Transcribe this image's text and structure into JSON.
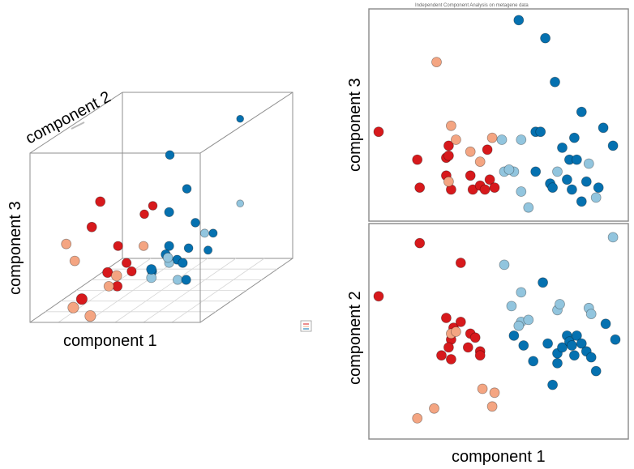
{
  "colors": {
    "dark_red": "#d7191c",
    "light_red": "#f4a582",
    "light_blue": "#92c5de",
    "dark_blue": "#0571b0"
  },
  "figure_3d": {
    "xlabel": "component 1",
    "ylabel": "component 2",
    "zlabel": "component 3",
    "legend_icon": "legend-icon"
  },
  "panel_top": {
    "title": "Independent Component Analysis on metagene data",
    "ylabel": "component 3"
  },
  "panel_bottom": {
    "ylabel": "component 2",
    "xlabel": "component 1"
  },
  "chart_data": [
    {
      "type": "scatter",
      "title": "",
      "xlabel": "component 1",
      "ylabel": "component 3",
      "series": [
        {
          "name": "dark red",
          "color": "#d7191c",
          "points": [
            [
              0.0,
              0.42
            ],
            [
              0.16,
              0.28
            ],
            [
              0.17,
              0.14
            ],
            [
              0.28,
              0.29
            ],
            [
              0.28,
              0.2
            ],
            [
              0.29,
              0.3
            ],
            [
              0.29,
              0.35
            ],
            [
              0.3,
              0.13
            ],
            [
              0.38,
              0.2
            ],
            [
              0.39,
              0.13
            ],
            [
              0.42,
              0.15
            ],
            [
              0.44,
              0.13
            ],
            [
              0.45,
              0.33
            ],
            [
              0.46,
              0.18
            ],
            [
              0.48,
              0.14
            ]
          ]
        },
        {
          "name": "light red",
          "color": "#f4a582",
          "points": [
            [
              0.24,
              0.77
            ],
            [
              0.3,
              0.45
            ],
            [
              0.32,
              0.38
            ],
            [
              0.29,
              0.17
            ],
            [
              0.42,
              0.27
            ],
            [
              0.47,
              0.39
            ],
            [
              0.38,
              0.32
            ]
          ]
        },
        {
          "name": "light blue",
          "color": "#92c5de",
          "points": [
            [
              0.51,
              0.38
            ],
            [
              0.52,
              0.22
            ],
            [
              0.56,
              0.22
            ],
            [
              0.54,
              0.23
            ],
            [
              0.59,
              0.38
            ],
            [
              0.59,
              0.12
            ],
            [
              0.62,
              0.04
            ],
            [
              0.74,
              0.22
            ],
            [
              0.87,
              0.26
            ],
            [
              0.9,
              0.09
            ]
          ]
        },
        {
          "name": "dark blue",
          "color": "#0571b0",
          "points": [
            [
              0.58,
              0.98
            ],
            [
              0.69,
              0.89
            ],
            [
              0.73,
              0.67
            ],
            [
              0.84,
              0.52
            ],
            [
              0.81,
              0.39
            ],
            [
              0.79,
              0.28
            ],
            [
              0.76,
              0.34
            ],
            [
              0.65,
              0.42
            ],
            [
              0.65,
              0.22
            ],
            [
              0.71,
              0.16
            ],
            [
              0.72,
              0.14
            ],
            [
              0.78,
              0.18
            ],
            [
              0.8,
              0.13
            ],
            [
              0.82,
              0.28
            ],
            [
              0.86,
              0.17
            ],
            [
              0.91,
              0.14
            ],
            [
              0.97,
              0.35
            ],
            [
              0.93,
              0.44
            ],
            [
              0.84,
              0.07
            ],
            [
              0.67,
              0.42
            ]
          ]
        }
      ]
    },
    {
      "type": "scatter",
      "title": "",
      "xlabel": "component 1",
      "ylabel": "component 2",
      "series": [
        {
          "name": "dark red",
          "color": "#d7191c",
          "points": [
            [
              0.0,
              0.68
            ],
            [
              0.17,
              0.95
            ],
            [
              0.34,
              0.85
            ],
            [
              0.28,
              0.57
            ],
            [
              0.3,
              0.46
            ],
            [
              0.31,
              0.52
            ],
            [
              0.34,
              0.55
            ],
            [
              0.38,
              0.49
            ],
            [
              0.4,
              0.47
            ],
            [
              0.37,
              0.42
            ],
            [
              0.29,
              0.42
            ],
            [
              0.26,
              0.38
            ],
            [
              0.3,
              0.36
            ],
            [
              0.42,
              0.4
            ],
            [
              0.42,
              0.38
            ]
          ]
        },
        {
          "name": "light red",
          "color": "#f4a582",
          "points": [
            [
              0.16,
              0.06
            ],
            [
              0.23,
              0.11
            ],
            [
              0.3,
              0.49
            ],
            [
              0.32,
              0.5
            ],
            [
              0.43,
              0.21
            ],
            [
              0.48,
              0.19
            ],
            [
              0.47,
              0.12
            ]
          ]
        },
        {
          "name": "light blue",
          "color": "#92c5de",
          "points": [
            [
              0.52,
              0.84
            ],
            [
              0.59,
              0.7
            ],
            [
              0.55,
              0.63
            ],
            [
              0.59,
              0.55
            ],
            [
              0.62,
              0.56
            ],
            [
              0.74,
              0.61
            ],
            [
              0.75,
              0.64
            ],
            [
              0.87,
              0.62
            ],
            [
              0.88,
              0.59
            ],
            [
              0.97,
              0.98
            ],
            [
              0.58,
              0.53
            ]
          ]
        },
        {
          "name": "dark blue",
          "color": "#0571b0",
          "points": [
            [
              0.56,
              0.48
            ],
            [
              0.6,
              0.43
            ],
            [
              0.68,
              0.75
            ],
            [
              0.64,
              0.35
            ],
            [
              0.7,
              0.44
            ],
            [
              0.74,
              0.39
            ],
            [
              0.76,
              0.42
            ],
            [
              0.78,
              0.48
            ],
            [
              0.79,
              0.45
            ],
            [
              0.8,
              0.43
            ],
            [
              0.82,
              0.48
            ],
            [
              0.84,
              0.44
            ],
            [
              0.86,
              0.4
            ],
            [
              0.88,
              0.37
            ],
            [
              0.9,
              0.3
            ],
            [
              0.94,
              0.54
            ],
            [
              0.98,
              0.46
            ],
            [
              0.72,
              0.23
            ],
            [
              0.81,
              0.38
            ],
            [
              0.74,
              0.34
            ]
          ]
        }
      ]
    },
    {
      "type": "scatter",
      "title": "",
      "xlabel": "component 1",
      "ylabel": "component 2",
      "zlabel": "component 3",
      "series": [
        {
          "name": "dark red",
          "color": "#d7191c",
          "points": [
            [
              0.2,
              0.3,
              0.45
            ],
            [
              0.25,
              0.3,
              0.6
            ],
            [
              0.3,
              0.4,
              0.3
            ],
            [
              0.35,
              0.4,
              0.2
            ],
            [
              0.35,
              0.3,
              0.1
            ],
            [
              0.25,
              0.1,
              0.1
            ],
            [
              0.4,
              0.5,
              0.45
            ],
            [
              0.45,
              0.5,
              0.5
            ],
            [
              0.32,
              0.25,
              0.2
            ],
            [
              0.38,
              0.4,
              0.15
            ]
          ]
        },
        {
          "name": "light red",
          "color": "#f4a582",
          "points": [
            [
              0.05,
              0.3,
              0.35
            ],
            [
              0.1,
              0.3,
              0.25
            ],
            [
              0.2,
              0.1,
              0.05
            ],
            [
              0.3,
              0.1,
              0.0
            ],
            [
              0.4,
              0.2,
              0.2
            ],
            [
              0.45,
              0.4,
              0.3
            ],
            [
              0.3,
              0.3,
              0.1
            ]
          ]
        },
        {
          "name": "light blue",
          "color": "#92c5de",
          "points": [
            [
              0.6,
              0.4,
              0.2
            ],
            [
              0.62,
              0.35,
              0.25
            ],
            [
              0.7,
              0.6,
              0.3
            ],
            [
              0.8,
              0.8,
              0.4
            ],
            [
              0.55,
              0.3,
              0.15
            ],
            [
              0.65,
              0.4,
              0.1
            ]
          ]
        },
        {
          "name": "dark blue",
          "color": "#0571b0",
          "points": [
            [
              0.55,
              0.5,
              0.8
            ],
            [
              0.8,
              0.8,
              0.9
            ],
            [
              0.6,
              0.4,
              0.5
            ],
            [
              0.65,
              0.5,
              0.6
            ],
            [
              0.7,
              0.5,
              0.4
            ],
            [
              0.6,
              0.4,
              0.3
            ],
            [
              0.55,
              0.3,
              0.2
            ],
            [
              0.58,
              0.4,
              0.25
            ],
            [
              0.62,
              0.45,
              0.2
            ],
            [
              0.68,
              0.4,
              0.2
            ],
            [
              0.7,
              0.4,
              0.1
            ],
            [
              0.72,
              0.6,
              0.2
            ],
            [
              0.75,
              0.6,
              0.3
            ],
            [
              0.5,
              0.4,
              0.15
            ],
            [
              0.66,
              0.5,
              0.25
            ]
          ]
        }
      ]
    }
  ]
}
